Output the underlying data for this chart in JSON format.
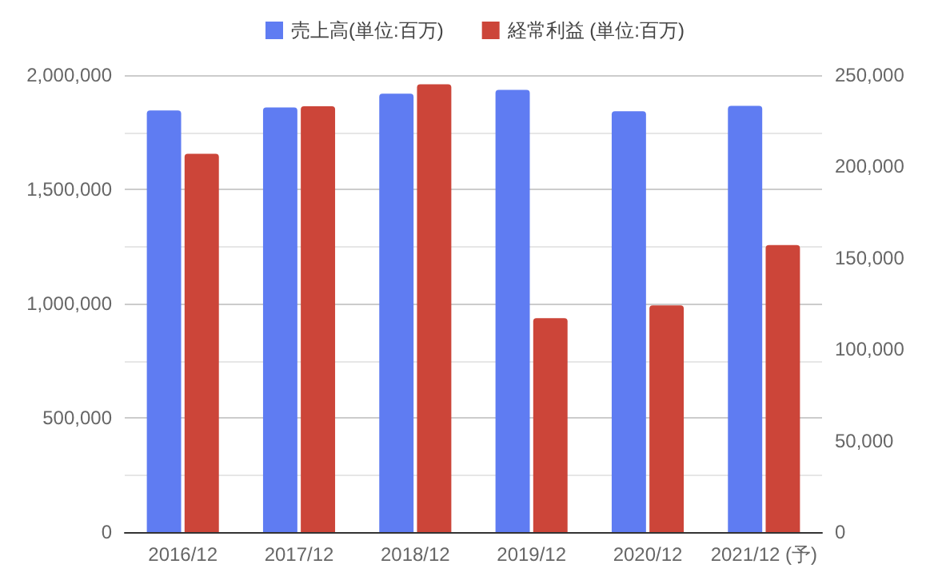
{
  "chart_data": {
    "type": "bar",
    "categories": [
      "2016/12",
      "2017/12",
      "2018/12",
      "2019/12",
      "2020/12",
      "2021/12 (予)"
    ],
    "series": [
      {
        "name": "売上高(単位:百万)",
        "color": "#5f7cf2",
        "values": [
          1845000,
          1858000,
          1919000,
          1935000,
          1842000,
          1865000
        ]
      },
      {
        "name": "経常利益 (単位:百万)",
        "color": "#cc4539",
        "axis": "y2",
        "values": [
          207000,
          233000,
          245000,
          117000,
          124000,
          157000
        ]
      }
    ],
    "ylim": [
      0,
      2000000
    ],
    "yticks": [
      0,
      {
        "value": 500000,
        "label": "500,000"
      },
      {
        "value": 1000000,
        "label": "1,000,000"
      },
      {
        "value": 1500000,
        "label": "1,500,000"
      },
      {
        "value": 2000000,
        "label": "2,000,000"
      }
    ],
    "y2lim": [
      0,
      250000
    ],
    "y2ticks": [
      0,
      {
        "value": 50000,
        "label": "50,000"
      },
      {
        "value": 100000,
        "label": "100,000"
      },
      {
        "value": 150000,
        "label": "150,000"
      },
      {
        "value": 200000,
        "label": "200,000"
      },
      {
        "value": 250000,
        "label": "250,000"
      }
    ],
    "grid": "y",
    "legend": "top"
  }
}
